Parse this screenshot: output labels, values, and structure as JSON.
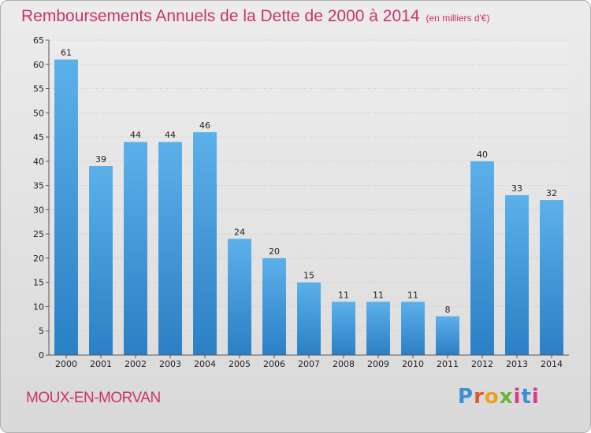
{
  "header": {
    "title": "Remboursements Annuels de la Dette de 2000 à 2014",
    "unit": "(en milliers d'€)"
  },
  "footer": {
    "commune": "MOUX-EN-MORVAN",
    "logo": "Proxiti"
  },
  "colors": {
    "title": "#cc3366",
    "bar_top": "#5aaee8",
    "bar_bottom": "#2b7fc4",
    "background": "#e3e3e3"
  },
  "chart_data": {
    "type": "bar",
    "title": "Remboursements Annuels de la Dette de 2000 à 2014",
    "subtitle": "(en milliers d'€)",
    "categories": [
      "2000",
      "2001",
      "2002",
      "2003",
      "2004",
      "2005",
      "2006",
      "2007",
      "2008",
      "2009",
      "2010",
      "2011",
      "2012",
      "2013",
      "2014"
    ],
    "values": [
      61,
      39,
      44,
      44,
      46,
      24,
      20,
      15,
      11,
      11,
      11,
      8,
      40,
      33,
      32
    ],
    "ylim": [
      0,
      65
    ],
    "yticks": [
      0,
      5,
      10,
      15,
      20,
      25,
      30,
      35,
      40,
      45,
      50,
      55,
      60,
      65
    ],
    "grid": true,
    "data_labels": true
  }
}
